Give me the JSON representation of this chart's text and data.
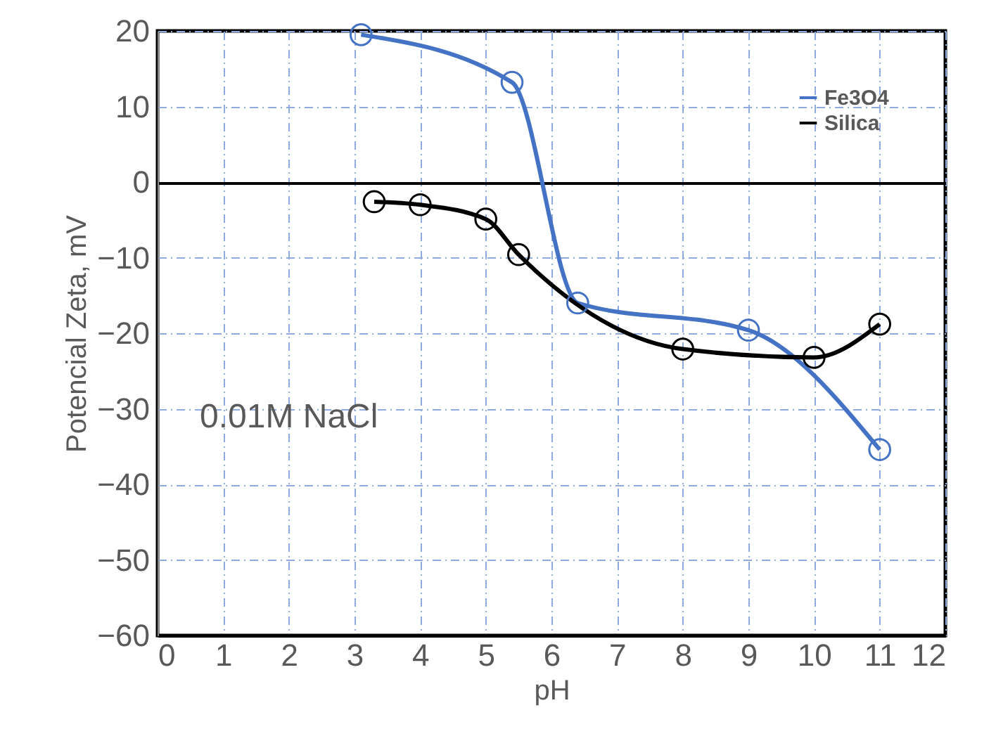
{
  "chart_data": {
    "type": "line",
    "xlabel": "pH",
    "ylabel": "Potencial Zeta, mV",
    "annotations": [
      "0.01M NaCl"
    ],
    "xlim": [
      0,
      12
    ],
    "xticks": [
      0,
      1,
      2,
      3,
      4,
      5,
      6,
      7,
      8,
      9,
      10,
      11,
      12
    ],
    "ylim": [
      -60,
      20
    ],
    "yticks": [
      -60,
      -50,
      -40,
      -30,
      -20,
      -10,
      0,
      10,
      20
    ],
    "grid": true,
    "legend": "top right",
    "marker": "circle",
    "line_style": "solid",
    "series": [
      {
        "name": "Fe3O4",
        "color": "#4472c4",
        "x": [
          3.1,
          5.4,
          6.4,
          9,
          11
        ],
        "values": [
          19.5,
          13.2,
          -16,
          -19.6,
          -35.4
        ]
      },
      {
        "name": "Silica",
        "color": "#000000",
        "x": [
          3.3,
          4,
          5,
          5.5,
          8,
          10,
          11
        ],
        "values": [
          -2.6,
          -3,
          -4.9,
          -9.6,
          -22.1,
          -23.2,
          -18.8
        ]
      }
    ]
  }
}
